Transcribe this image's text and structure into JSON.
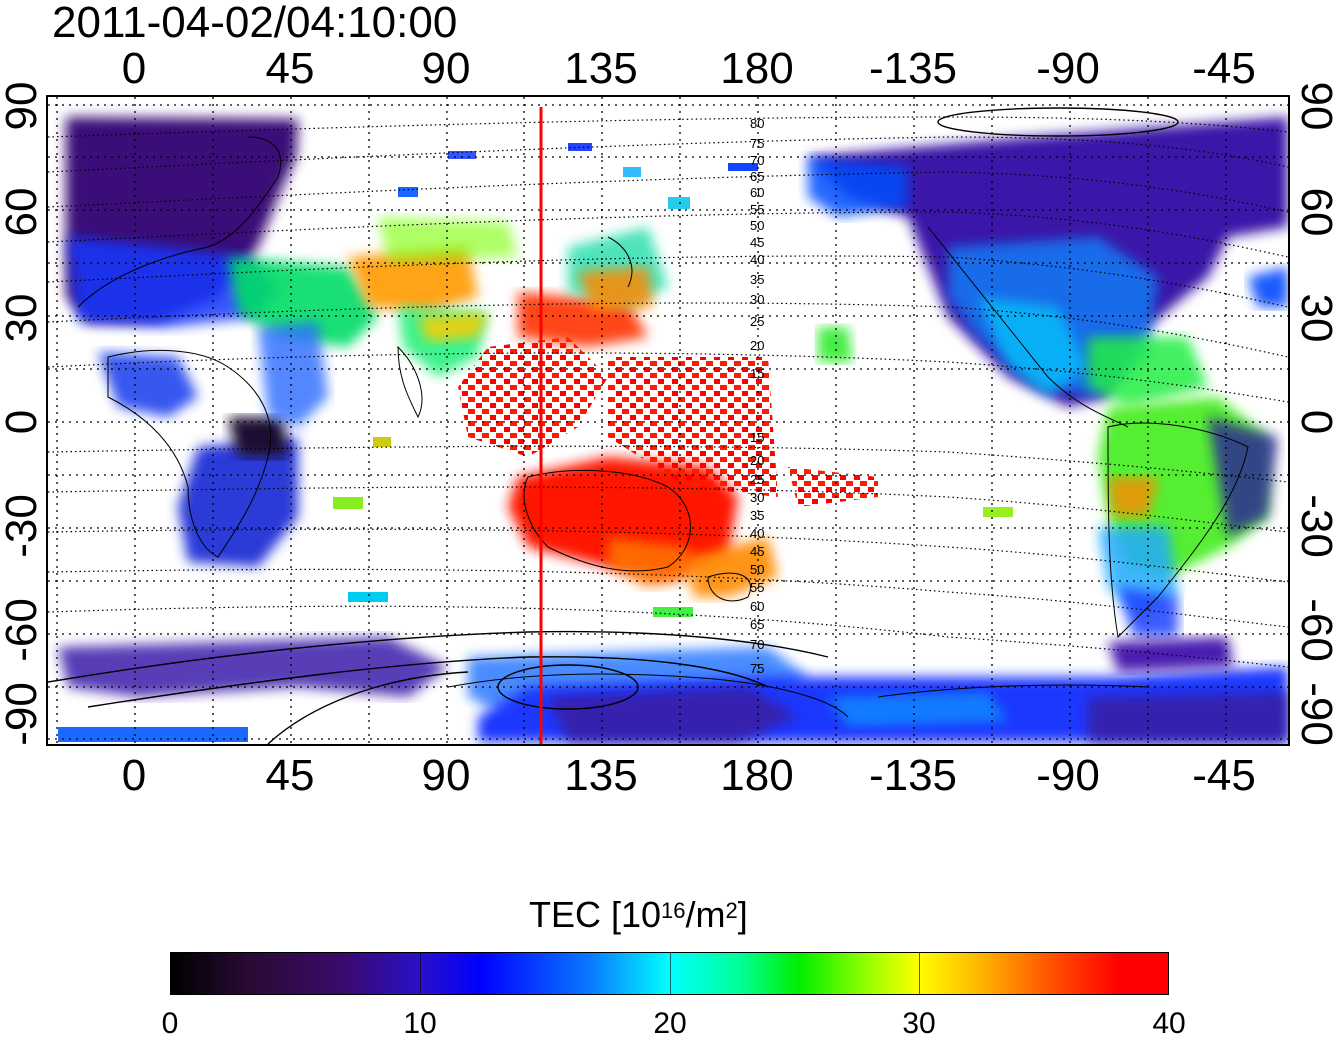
{
  "title": "2011-04-02/04:10:00",
  "axes": {
    "top_ticks": [
      "0",
      "45",
      "90",
      "135",
      "180",
      "-135",
      "-90",
      "-45"
    ],
    "bottom_ticks": [
      "0",
      "45",
      "90",
      "135",
      "180",
      "-135",
      "-90",
      "-45"
    ],
    "left_ticks": [
      "90",
      "60",
      "30",
      "0",
      "-30",
      "-60",
      "-90"
    ],
    "right_ticks": [
      "90",
      "60",
      "30",
      "0",
      "-30",
      "-60",
      "-90"
    ]
  },
  "map": {
    "projection": "equirectangular",
    "lon_range": [
      -20,
      340
    ],
    "lat_range": [
      -90,
      90
    ],
    "grid": "dotted, 15 degree spacing",
    "meridian_marker_lon": 117,
    "meridian_marker_color": "#ff0000",
    "contour_labels_north": [
      "80",
      "75",
      "70",
      "65",
      "60",
      "55",
      "50",
      "45",
      "40",
      "35",
      "30",
      "25",
      "20",
      "15"
    ],
    "contour_labels_south": [
      "15",
      "20",
      "25",
      "30",
      "35",
      "40",
      "45",
      "50",
      "55",
      "60",
      "65",
      "70",
      "75"
    ]
  },
  "colorbar": {
    "label_main": "TEC  [10",
    "label_sup": "16",
    "label_tail": "/m",
    "label_sup2": "2",
    "label_end": "]",
    "min": 0,
    "max": 40,
    "ticks": [
      "0",
      "10",
      "20",
      "30",
      "40"
    ],
    "colors": [
      "#000000",
      "#3a0a6a",
      "#0000ff",
      "#00ffff",
      "#00ee00",
      "#ffff00",
      "#ff0000"
    ]
  }
}
